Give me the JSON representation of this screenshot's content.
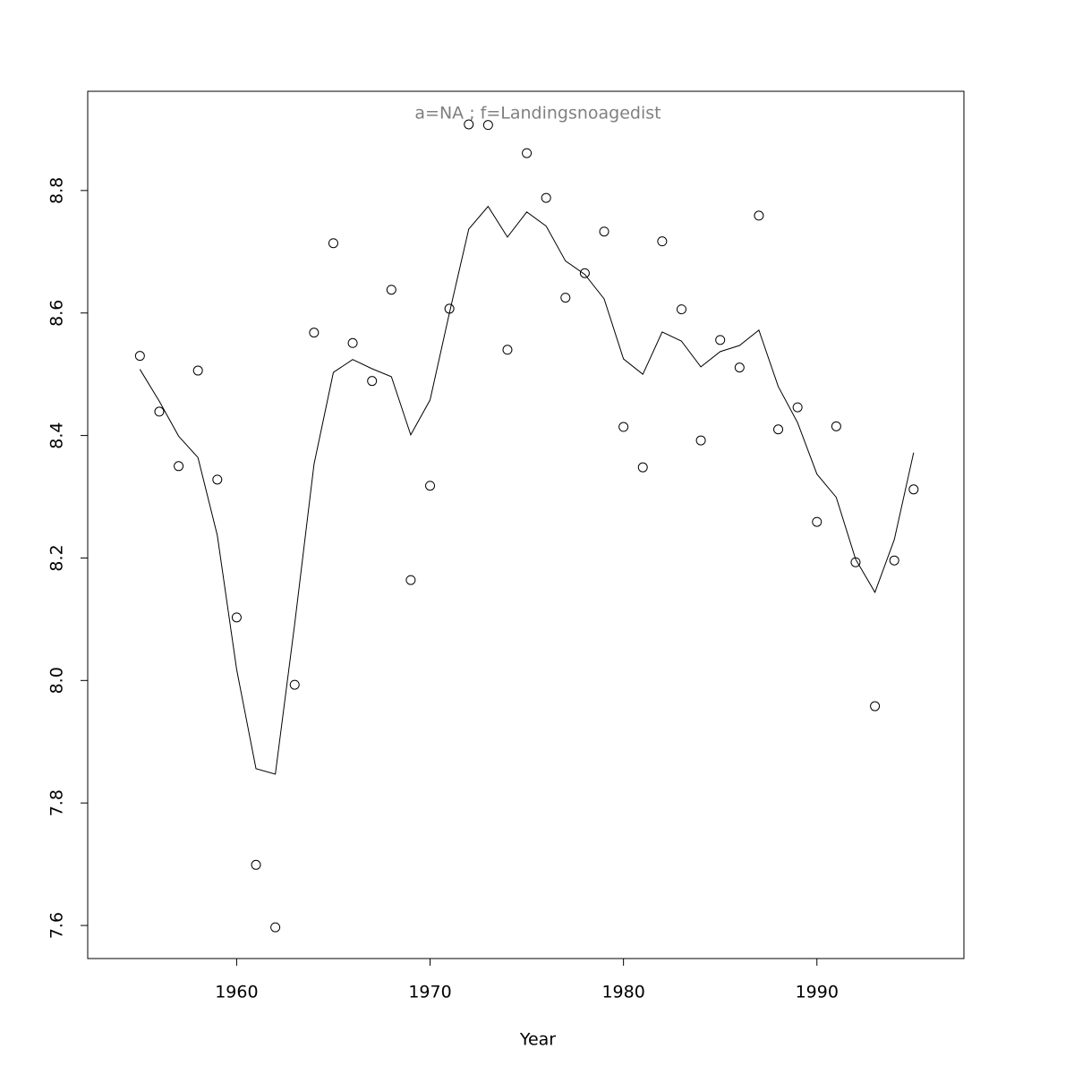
{
  "chart_data": {
    "type": "scatter",
    "title": "a=NA ; f=Landingsnoagedist",
    "x_label": "Year",
    "x": [
      1955,
      1956,
      1957,
      1958,
      1959,
      1960,
      1961,
      1962,
      1963,
      1964,
      1965,
      1966,
      1967,
      1968,
      1969,
      1970,
      1971,
      1972,
      1973,
      1974,
      1975,
      1976,
      1977,
      1978,
      1979,
      1980,
      1981,
      1982,
      1983,
      1984,
      1985,
      1986,
      1987,
      1988,
      1989,
      1990,
      1991,
      1992,
      1993,
      1994,
      1995
    ],
    "series": [
      {
        "marker": "circle",
        "color": "#000000",
        "values": [
          8.53,
          8.439,
          8.35,
          8.506,
          8.328,
          8.103,
          7.699,
          7.597,
          7.993,
          8.568,
          8.714,
          8.551,
          8.489,
          8.638,
          8.164,
          8.318,
          8.607,
          8.908,
          8.907,
          8.54,
          8.861,
          8.788,
          8.625,
          8.665,
          8.733,
          8.414,
          8.348,
          8.717,
          8.606,
          8.392,
          8.556,
          8.511,
          8.759,
          8.41,
          8.446,
          8.259,
          8.415,
          8.193,
          7.958,
          8.196,
          8.312
        ]
      },
      {
        "marker": "line",
        "color": "#000000",
        "values": [
          8.508,
          8.456,
          8.399,
          8.364,
          8.237,
          8.018,
          7.856,
          7.847,
          8.092,
          8.353,
          8.503,
          8.524,
          8.509,
          8.496,
          8.401,
          8.458,
          8.6,
          8.737,
          8.774,
          8.724,
          8.765,
          8.742,
          8.685,
          8.663,
          8.623,
          8.525,
          8.5,
          8.569,
          8.554,
          8.512,
          8.537,
          8.547,
          8.572,
          8.48,
          8.421,
          8.337,
          8.299,
          8.198,
          8.144,
          8.23,
          8.372
        ]
      }
    ],
    "xlim": [
      1952.3,
      1997.6
    ],
    "ylim": [
      7.546,
      8.962
    ],
    "xticks": [
      1960,
      1970,
      1980,
      1990
    ],
    "yticks": [
      7.6,
      7.8,
      {
        "value": 8.0,
        "label": "8.0"
      },
      8.2,
      8.4,
      8.6,
      8.8
    ],
    "title_color": "#808080"
  }
}
